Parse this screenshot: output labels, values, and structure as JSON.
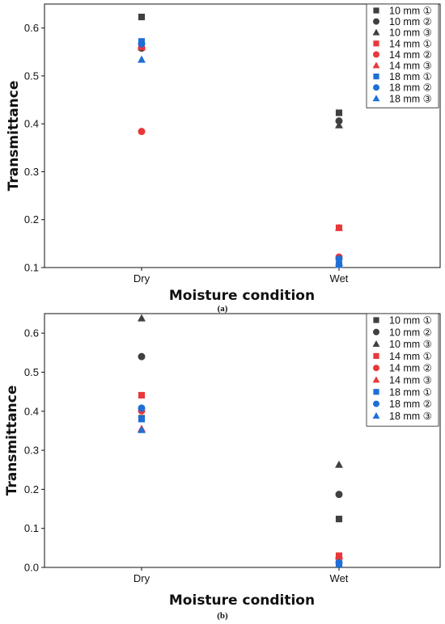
{
  "chart_data": [
    {
      "type": "scatter",
      "panel_label": "(a)",
      "xlabel": "Moisture condition",
      "ylabel": "Transmittance",
      "categories": [
        "Dry",
        "Wet"
      ],
      "ylim": [
        0.1,
        0.65
      ],
      "yticks": [
        "0.1",
        "0.2",
        "0.3",
        "0.4",
        "0.5",
        "0.6"
      ],
      "legend_position": "top-right",
      "series": [
        {
          "name": "10 mm ①",
          "color": "#404040",
          "marker": "square",
          "values": [
            0.623,
            0.423
          ]
        },
        {
          "name": "10 mm ②",
          "color": "#404040",
          "marker": "circle",
          "values": [
            0.558,
            0.406
          ]
        },
        {
          "name": "10 mm ③",
          "color": "#404040",
          "marker": "triangle",
          "values": [
            0.56,
            0.397
          ]
        },
        {
          "name": "14 mm ①",
          "color": "#e8383b",
          "marker": "square",
          "values": [
            0.562,
            0.183
          ]
        },
        {
          "name": "14 mm ②",
          "color": "#e8383b",
          "marker": "circle",
          "values": [
            0.384,
            0.122
          ]
        },
        {
          "name": "14 mm ③",
          "color": "#e8383b",
          "marker": "triangle",
          "values": [
            0.56,
            0.183
          ]
        },
        {
          "name": "18 mm ①",
          "color": "#1f6fd6",
          "marker": "square",
          "values": [
            0.572,
            0.106
          ]
        },
        {
          "name": "18 mm ②",
          "color": "#1f6fd6",
          "marker": "circle",
          "values": [
            0.567,
            0.118
          ]
        },
        {
          "name": "18 mm ③",
          "color": "#1f6fd6",
          "marker": "triangle",
          "values": [
            0.534,
            0.11
          ]
        }
      ]
    },
    {
      "type": "scatter",
      "panel_label": "(b)",
      "xlabel": "Moisture condition",
      "ylabel": "Transmittance",
      "categories": [
        "Dry",
        "Wet"
      ],
      "ylim": [
        0.0,
        0.65
      ],
      "yticks": [
        "0.0",
        "0.1",
        "0.2",
        "0.3",
        "0.4",
        "0.5",
        "0.6"
      ],
      "legend_position": "top-right",
      "series": [
        {
          "name": "10 mm ①",
          "color": "#404040",
          "marker": "square",
          "values": [
            0.382,
            0.124
          ]
        },
        {
          "name": "10 mm ②",
          "color": "#404040",
          "marker": "circle",
          "values": [
            0.54,
            0.187
          ]
        },
        {
          "name": "10 mm ③",
          "color": "#404040",
          "marker": "triangle",
          "values": [
            0.638,
            0.263
          ]
        },
        {
          "name": "14 mm ①",
          "color": "#e8383b",
          "marker": "square",
          "values": [
            0.441,
            0.03
          ]
        },
        {
          "name": "14 mm ②",
          "color": "#e8383b",
          "marker": "circle",
          "values": [
            0.401,
            0.025
          ]
        },
        {
          "name": "14 mm ③",
          "color": "#e8383b",
          "marker": "triangle",
          "values": [
            0.355,
            0.028
          ]
        },
        {
          "name": "18 mm ①",
          "color": "#1f6fd6",
          "marker": "square",
          "values": [
            0.38,
            0.01
          ]
        },
        {
          "name": "18 mm ②",
          "color": "#1f6fd6",
          "marker": "circle",
          "values": [
            0.408,
            0.012
          ]
        },
        {
          "name": "18 mm ③",
          "color": "#1f6fd6",
          "marker": "triangle",
          "values": [
            0.352,
            0.008
          ]
        }
      ]
    }
  ]
}
